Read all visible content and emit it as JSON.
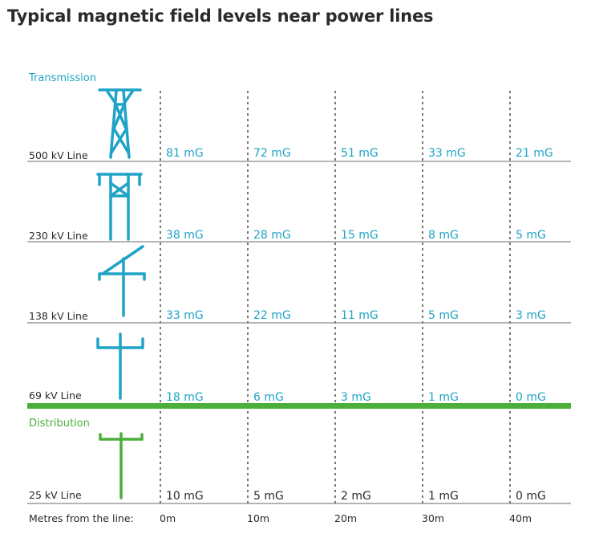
{
  "title": "Typical magnetic field levels near power lines",
  "colors": {
    "transmission": "#1fa3c6",
    "distribution": "#4caf3c",
    "text": "#2b2b2b",
    "rule": "#888888",
    "divider": "#4caf3c"
  },
  "sections": {
    "transmission_label": "Transmission",
    "distribution_label": "Distribution"
  },
  "x_axis": {
    "label": "Metres from the line:",
    "ticks": [
      "0m",
      "10m",
      "20m",
      "30m",
      "40m"
    ]
  },
  "rows": [
    {
      "label": "500 kV Line",
      "group": "transmission",
      "icon": "lattice-tower-icon",
      "values": [
        "81 mG",
        "72 mG",
        "51 mG",
        "33 mG",
        "21 mG"
      ]
    },
    {
      "label": "230 kV Line",
      "group": "transmission",
      "icon": "h-frame-tower-icon",
      "values": [
        "38 mG",
        "28 mG",
        "15 mG",
        "8 mG",
        "5 mG"
      ]
    },
    {
      "label": "138 kV Line",
      "group": "transmission",
      "icon": "angled-crossarm-pole-icon",
      "values": [
        "33 mG",
        "22 mG",
        "11 mG",
        "5 mG",
        "3 mG"
      ]
    },
    {
      "label": "69 kV Line",
      "group": "transmission",
      "icon": "crossarm-pole-icon",
      "values": [
        "18 mG",
        "6 mG",
        "3 mG",
        "1 mG",
        "0 mG"
      ]
    },
    {
      "label": "25 kV Line",
      "group": "distribution",
      "icon": "distribution-pole-icon",
      "values": [
        "10 mG",
        "5 mG",
        "2 mG",
        "1 mG",
        "0 mG"
      ]
    }
  ]
}
